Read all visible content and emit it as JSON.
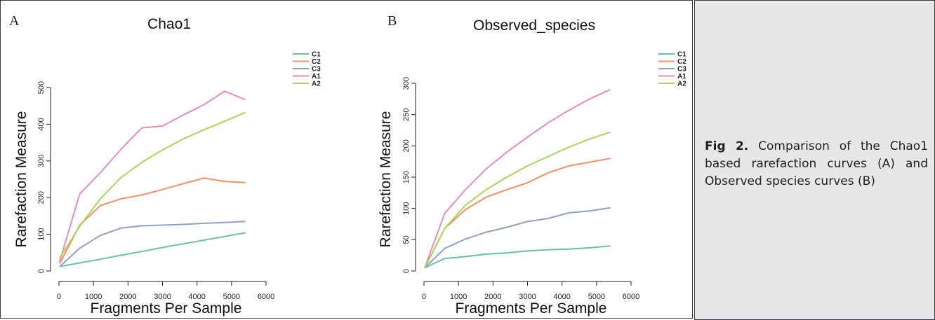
{
  "caption": {
    "label": "Fig 2.",
    "text": " Comparison of the Chao1 based rarefaction curves (A) and Observed species curves (B)"
  },
  "chart_data": [
    {
      "type": "line",
      "panel": "A",
      "title": "Chao1",
      "xlabel": "Fragments Per Sample",
      "ylabel": "Rarefaction Measure",
      "xlim": [
        0,
        6000
      ],
      "ylim": [
        0,
        500
      ],
      "xticks": [
        0,
        1000,
        2000,
        3000,
        4000,
        5000,
        6000
      ],
      "yticks": [
        0,
        100,
        200,
        300,
        400,
        500
      ],
      "legend_position": "top-right",
      "grid": false,
      "series": [
        {
          "name": "C1",
          "color": "#66c2a5",
          "x": [
            20,
            600,
            1200,
            1800,
            2400,
            3000,
            3600,
            4200,
            4800,
            5400
          ],
          "y": [
            12,
            22,
            32,
            43,
            53,
            64,
            74,
            84,
            94,
            104
          ]
        },
        {
          "name": "C2",
          "color": "#fc8d62",
          "x": [
            20,
            600,
            1200,
            1800,
            2400,
            3000,
            3600,
            4200,
            4800,
            5400
          ],
          "y": [
            20,
            125,
            178,
            197,
            207,
            222,
            238,
            253,
            244,
            241
          ]
        },
        {
          "name": "C3",
          "color": "#8da0cb",
          "x": [
            20,
            600,
            1200,
            1800,
            2400,
            3000,
            3600,
            4200,
            4800,
            5400
          ],
          "y": [
            12,
            62,
            97,
            117,
            123,
            125,
            127,
            130,
            132,
            135
          ]
        },
        {
          "name": "A1",
          "color": "#e78ac3",
          "x": [
            20,
            600,
            1200,
            1800,
            2400,
            3000,
            3600,
            4200,
            4800,
            5400
          ],
          "y": [
            25,
            210,
            268,
            332,
            390,
            395,
            425,
            453,
            490,
            467
          ]
        },
        {
          "name": "A2",
          "color": "#a6d854",
          "x": [
            20,
            600,
            1200,
            1800,
            2400,
            3000,
            3600,
            4200,
            4800,
            5400
          ],
          "y": [
            35,
            122,
            197,
            255,
            296,
            330,
            360,
            385,
            408,
            432
          ]
        }
      ]
    },
    {
      "type": "line",
      "panel": "B",
      "title": "Observed_species",
      "xlabel": "Fragments Per Sample",
      "ylabel": "Rarefaction Measure",
      "xlim": [
        0,
        6000
      ],
      "ylim": [
        0,
        300
      ],
      "xticks": [
        0,
        1000,
        2000,
        3000,
        4000,
        5000,
        6000
      ],
      "yticks": [
        0,
        50,
        100,
        150,
        200,
        250,
        300
      ],
      "legend_position": "top-right",
      "grid": false,
      "series": [
        {
          "name": "C1",
          "color": "#66c2a5",
          "x": [
            20,
            600,
            1200,
            1800,
            2400,
            3000,
            3600,
            4200,
            4800,
            5400
          ],
          "y": [
            5,
            20,
            23,
            27,
            29,
            32,
            34,
            35,
            37,
            40
          ]
        },
        {
          "name": "C2",
          "color": "#fc8d62",
          "x": [
            20,
            600,
            1200,
            1800,
            2400,
            3000,
            3600,
            4200,
            4800,
            5400
          ],
          "y": [
            5,
            68,
            98,
            118,
            130,
            141,
            157,
            168,
            174,
            180
          ]
        },
        {
          "name": "C3",
          "color": "#8da0cb",
          "x": [
            20,
            600,
            1200,
            1800,
            2400,
            3000,
            3600,
            4200,
            4800,
            5400
          ],
          "y": [
            5,
            36,
            51,
            62,
            70,
            79,
            84,
            93,
            96,
            101
          ]
        },
        {
          "name": "A1",
          "color": "#e78ac3",
          "x": [
            20,
            600,
            1200,
            1800,
            2400,
            3000,
            3600,
            4200,
            4800,
            5400
          ],
          "y": [
            5,
            92,
            130,
            163,
            190,
            214,
            237,
            257,
            275,
            290
          ]
        },
        {
          "name": "A2",
          "color": "#a6d854",
          "x": [
            20,
            600,
            1200,
            1800,
            2400,
            3000,
            3600,
            4200,
            4800,
            5400
          ],
          "y": [
            5,
            68,
            105,
            130,
            150,
            168,
            183,
            198,
            211,
            222
          ]
        }
      ]
    }
  ]
}
